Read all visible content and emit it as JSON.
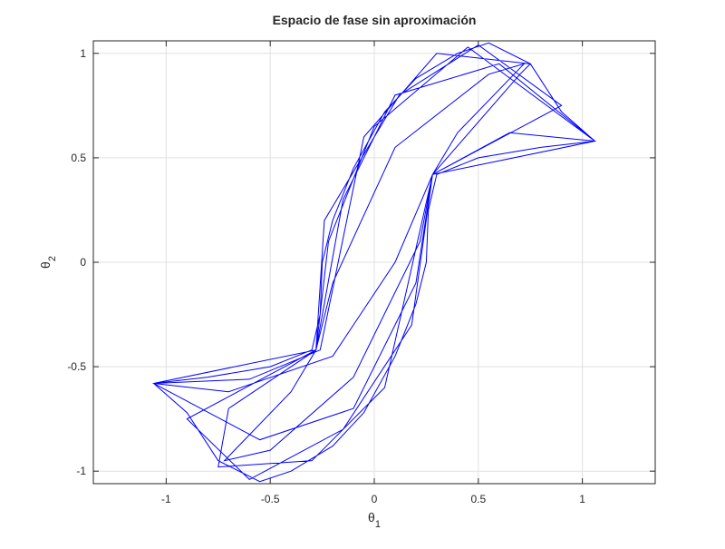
{
  "chart_data": {
    "type": "line",
    "title": "Espacio de fase sin aproximación",
    "xlabel": "θ",
    "xlabel_subscript": "1",
    "ylabel": "θ",
    "ylabel_subscript": "2",
    "xlim": [
      -1.35,
      1.35
    ],
    "ylim": [
      -1.06,
      1.06
    ],
    "xticks": [
      -1,
      -0.5,
      0,
      0.5,
      1
    ],
    "yticks": [
      -1,
      -0.5,
      0,
      0.5,
      1
    ],
    "grid": true,
    "series": [
      {
        "color": "#0000ff",
        "x": [
          1.06,
          0.9,
          0.75,
          0.55,
          0.4,
          0.2,
          0.05,
          -0.1,
          -0.2,
          -0.25,
          -0.26,
          -0.3,
          -0.5,
          -0.8,
          -1.06,
          -0.9,
          -0.75,
          -0.55,
          -0.4,
          -0.2,
          -0.05,
          0.1,
          0.2,
          0.25,
          0.26,
          0.3,
          0.5,
          0.8,
          1.06,
          0.6,
          0.1,
          -0.15,
          -0.28,
          -0.7,
          -0.75,
          -0.3,
          0.05,
          0.28,
          0.7,
          0.75,
          0.3,
          -0.05,
          -0.26,
          -0.6,
          -1.06,
          -0.55,
          -0.1,
          0.2,
          0.28,
          0.65,
          1.06,
          0.45,
          0.0,
          -0.22,
          -0.28,
          -0.9,
          -0.6,
          -0.15,
          0.18,
          0.28,
          0.9,
          0.5,
          0.12,
          -0.24,
          -0.28,
          -0.4,
          -0.72,
          -0.5,
          -0.1,
          0.22,
          0.28,
          0.4,
          0.72,
          0.55,
          0.1,
          -0.2,
          -0.28,
          -1.06,
          -0.7,
          -0.2,
          0.1,
          0.28,
          1.06
        ],
        "y": [
          0.58,
          0.72,
          0.95,
          1.05,
          1.0,
          0.88,
          0.72,
          0.45,
          0.2,
          0.0,
          -0.25,
          -0.42,
          -0.5,
          -0.55,
          -0.58,
          -0.72,
          -0.95,
          -1.05,
          -1.0,
          -0.88,
          -0.72,
          -0.45,
          -0.2,
          0.0,
          0.25,
          0.42,
          0.5,
          0.55,
          0.58,
          0.95,
          0.8,
          0.3,
          -0.42,
          -0.7,
          -0.98,
          -0.95,
          -0.6,
          0.42,
          0.9,
          0.95,
          1.0,
          0.6,
          -0.42,
          -0.56,
          -0.58,
          -0.85,
          -0.7,
          -0.1,
          0.42,
          0.62,
          0.58,
          1.03,
          0.65,
          0.1,
          -0.42,
          -0.75,
          -1.04,
          -0.8,
          -0.3,
          0.42,
          0.75,
          1.04,
          0.8,
          0.2,
          -0.42,
          -0.62,
          -0.95,
          -0.9,
          -0.55,
          0.1,
          0.42,
          0.62,
          0.95,
          0.9,
          0.55,
          -0.1,
          -0.42,
          -0.58,
          -0.62,
          -0.45,
          0.0,
          0.42,
          0.58
        ]
      }
    ]
  }
}
